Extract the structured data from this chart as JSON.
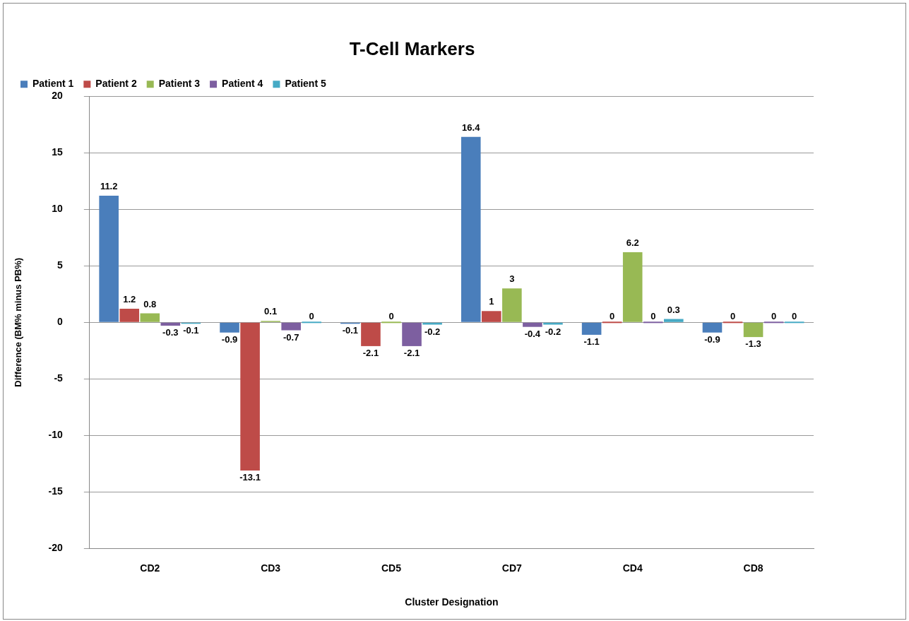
{
  "chart_data": {
    "type": "bar",
    "title": "T-Cell Markers",
    "xlabel": "Cluster Designation",
    "ylabel": "Difference (BM% minus PB%)",
    "categories": [
      "CD2",
      "CD3",
      "CD5",
      "CD7",
      "CD4",
      "CD8"
    ],
    "series": [
      {
        "name": "Patient 1",
        "color": "#4a7ebb",
        "values": [
          11.2,
          -0.9,
          -0.1,
          16.4,
          -1.1,
          -0.9
        ]
      },
      {
        "name": "Patient 2",
        "color": "#be4b48",
        "values": [
          1.2,
          -13.1,
          -2.1,
          1,
          0,
          0
        ]
      },
      {
        "name": "Patient 3",
        "color": "#98b954",
        "values": [
          0.8,
          0.1,
          0,
          3,
          6.2,
          -1.3
        ]
      },
      {
        "name": "Patient 4",
        "color": "#7d5fa0",
        "values": [
          -0.3,
          -0.7,
          -2.1,
          -0.4,
          0,
          0
        ]
      },
      {
        "name": "Patient 5",
        "color": "#46aac5",
        "values": [
          -0.1,
          0,
          -0.2,
          -0.2,
          0.3,
          0
        ]
      }
    ],
    "ylim": [
      -20,
      20
    ],
    "yticks": [
      -20,
      -15,
      -10,
      -5,
      0,
      5,
      10,
      15,
      20
    ],
    "grid": "y",
    "legend": "top",
    "data_labels": true
  }
}
